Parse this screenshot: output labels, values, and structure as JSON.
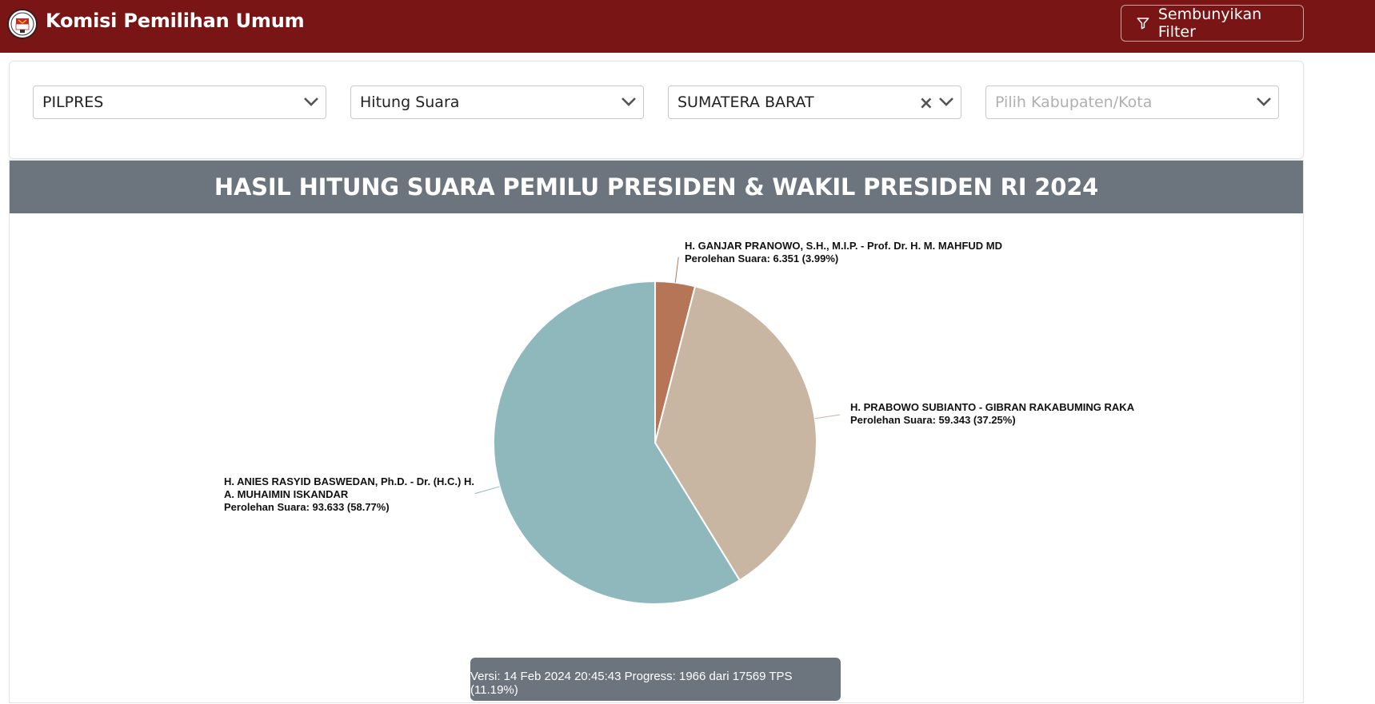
{
  "navbar": {
    "brand": "Komisi Pemilihan Umum",
    "filter_button": "Sembunyikan Filter",
    "filter_icon": "funnel-icon",
    "logo_icon": "kpu-logo"
  },
  "filters": {
    "election": "PILPRES",
    "count_type": "Hitung Suara",
    "province": "SUMATERA BARAT",
    "regency_placeholder": "Pilih Kabupaten/Kota"
  },
  "chart_header": "HASIL HITUNG SUARA PEMILU PRESIDEN & WAKIL PRESIDEN RI 2024",
  "chart_data": {
    "type": "pie",
    "slices": [
      {
        "name_lines": [
          "H. GANJAR PRANOWO, S.H., M.I.P. - Prof. Dr. H. M. MAHFUD MD"
        ],
        "votes_label": "Perolehan Suara: 6.351 (3.99%)",
        "value": 6351,
        "percent": 3.99,
        "color": "#b67556"
      },
      {
        "name_lines": [
          "H. PRABOWO SUBIANTO - GIBRAN RAKABUMING RAKA"
        ],
        "votes_label": "Perolehan Suara: 59.343 (37.25%)",
        "value": 59343,
        "percent": 37.25,
        "color": "#c8b6a3"
      },
      {
        "name_lines": [
          "H. ANIES RASYID BASWEDAN, Ph.D. - Dr. (H.C.) H.",
          "A. MUHAIMIN ISKANDAR"
        ],
        "votes_label": "Perolehan Suara: 93.633 (58.77%)",
        "value": 93633,
        "percent": 58.77,
        "color": "#8fb8bd"
      }
    ]
  },
  "footer": "Versi: 14 Feb 2024 20:45:43 Progress: 1966 dari 17569 TPS (11.19%)"
}
